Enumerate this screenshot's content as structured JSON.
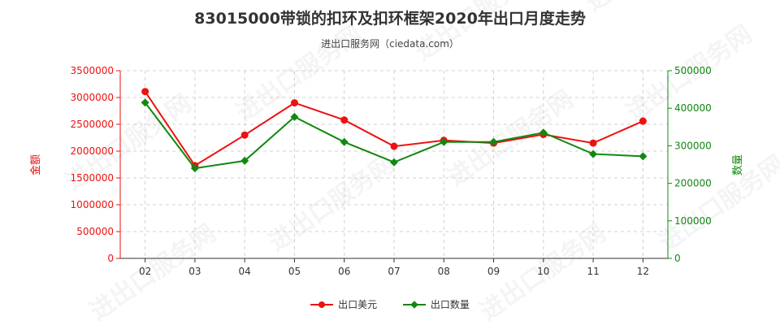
{
  "title": "83015000带锁的扣环及扣环框架2020年出口月度走势",
  "subtitle": "进出口服务网（ciedata.com）",
  "watermark": "进出口服务网",
  "colors": {
    "left_series": "#ee1111",
    "right_series": "#118811",
    "left_axis": "#ee1111",
    "right_axis": "#118811"
  },
  "chart_data": {
    "type": "line",
    "categories": [
      "02",
      "03",
      "04",
      "05",
      "06",
      "07",
      "08",
      "09",
      "10",
      "11",
      "12"
    ],
    "series": [
      {
        "name": "出口美元",
        "axis": "left",
        "values": [
          3110000,
          1730000,
          2300000,
          2900000,
          2580000,
          2090000,
          2200000,
          2150000,
          2310000,
          2150000,
          2560000
        ]
      },
      {
        "name": "出口数量",
        "axis": "right",
        "values": [
          415000,
          240000,
          260000,
          377000,
          310000,
          256000,
          310000,
          310000,
          335000,
          278000,
          272000
        ]
      }
    ],
    "y_left": {
      "label": "金额",
      "min": 0,
      "max": 3500000,
      "ticks": [
        "0",
        "500000",
        "1000000",
        "1500000",
        "2000000",
        "2500000",
        "3000000",
        "3500000"
      ]
    },
    "y_right": {
      "label": "数量",
      "min": 0,
      "max": 500000,
      "ticks": [
        "0",
        "100000",
        "200000",
        "300000",
        "400000",
        "500000"
      ]
    },
    "grid": true,
    "legend_position": "bottom"
  }
}
